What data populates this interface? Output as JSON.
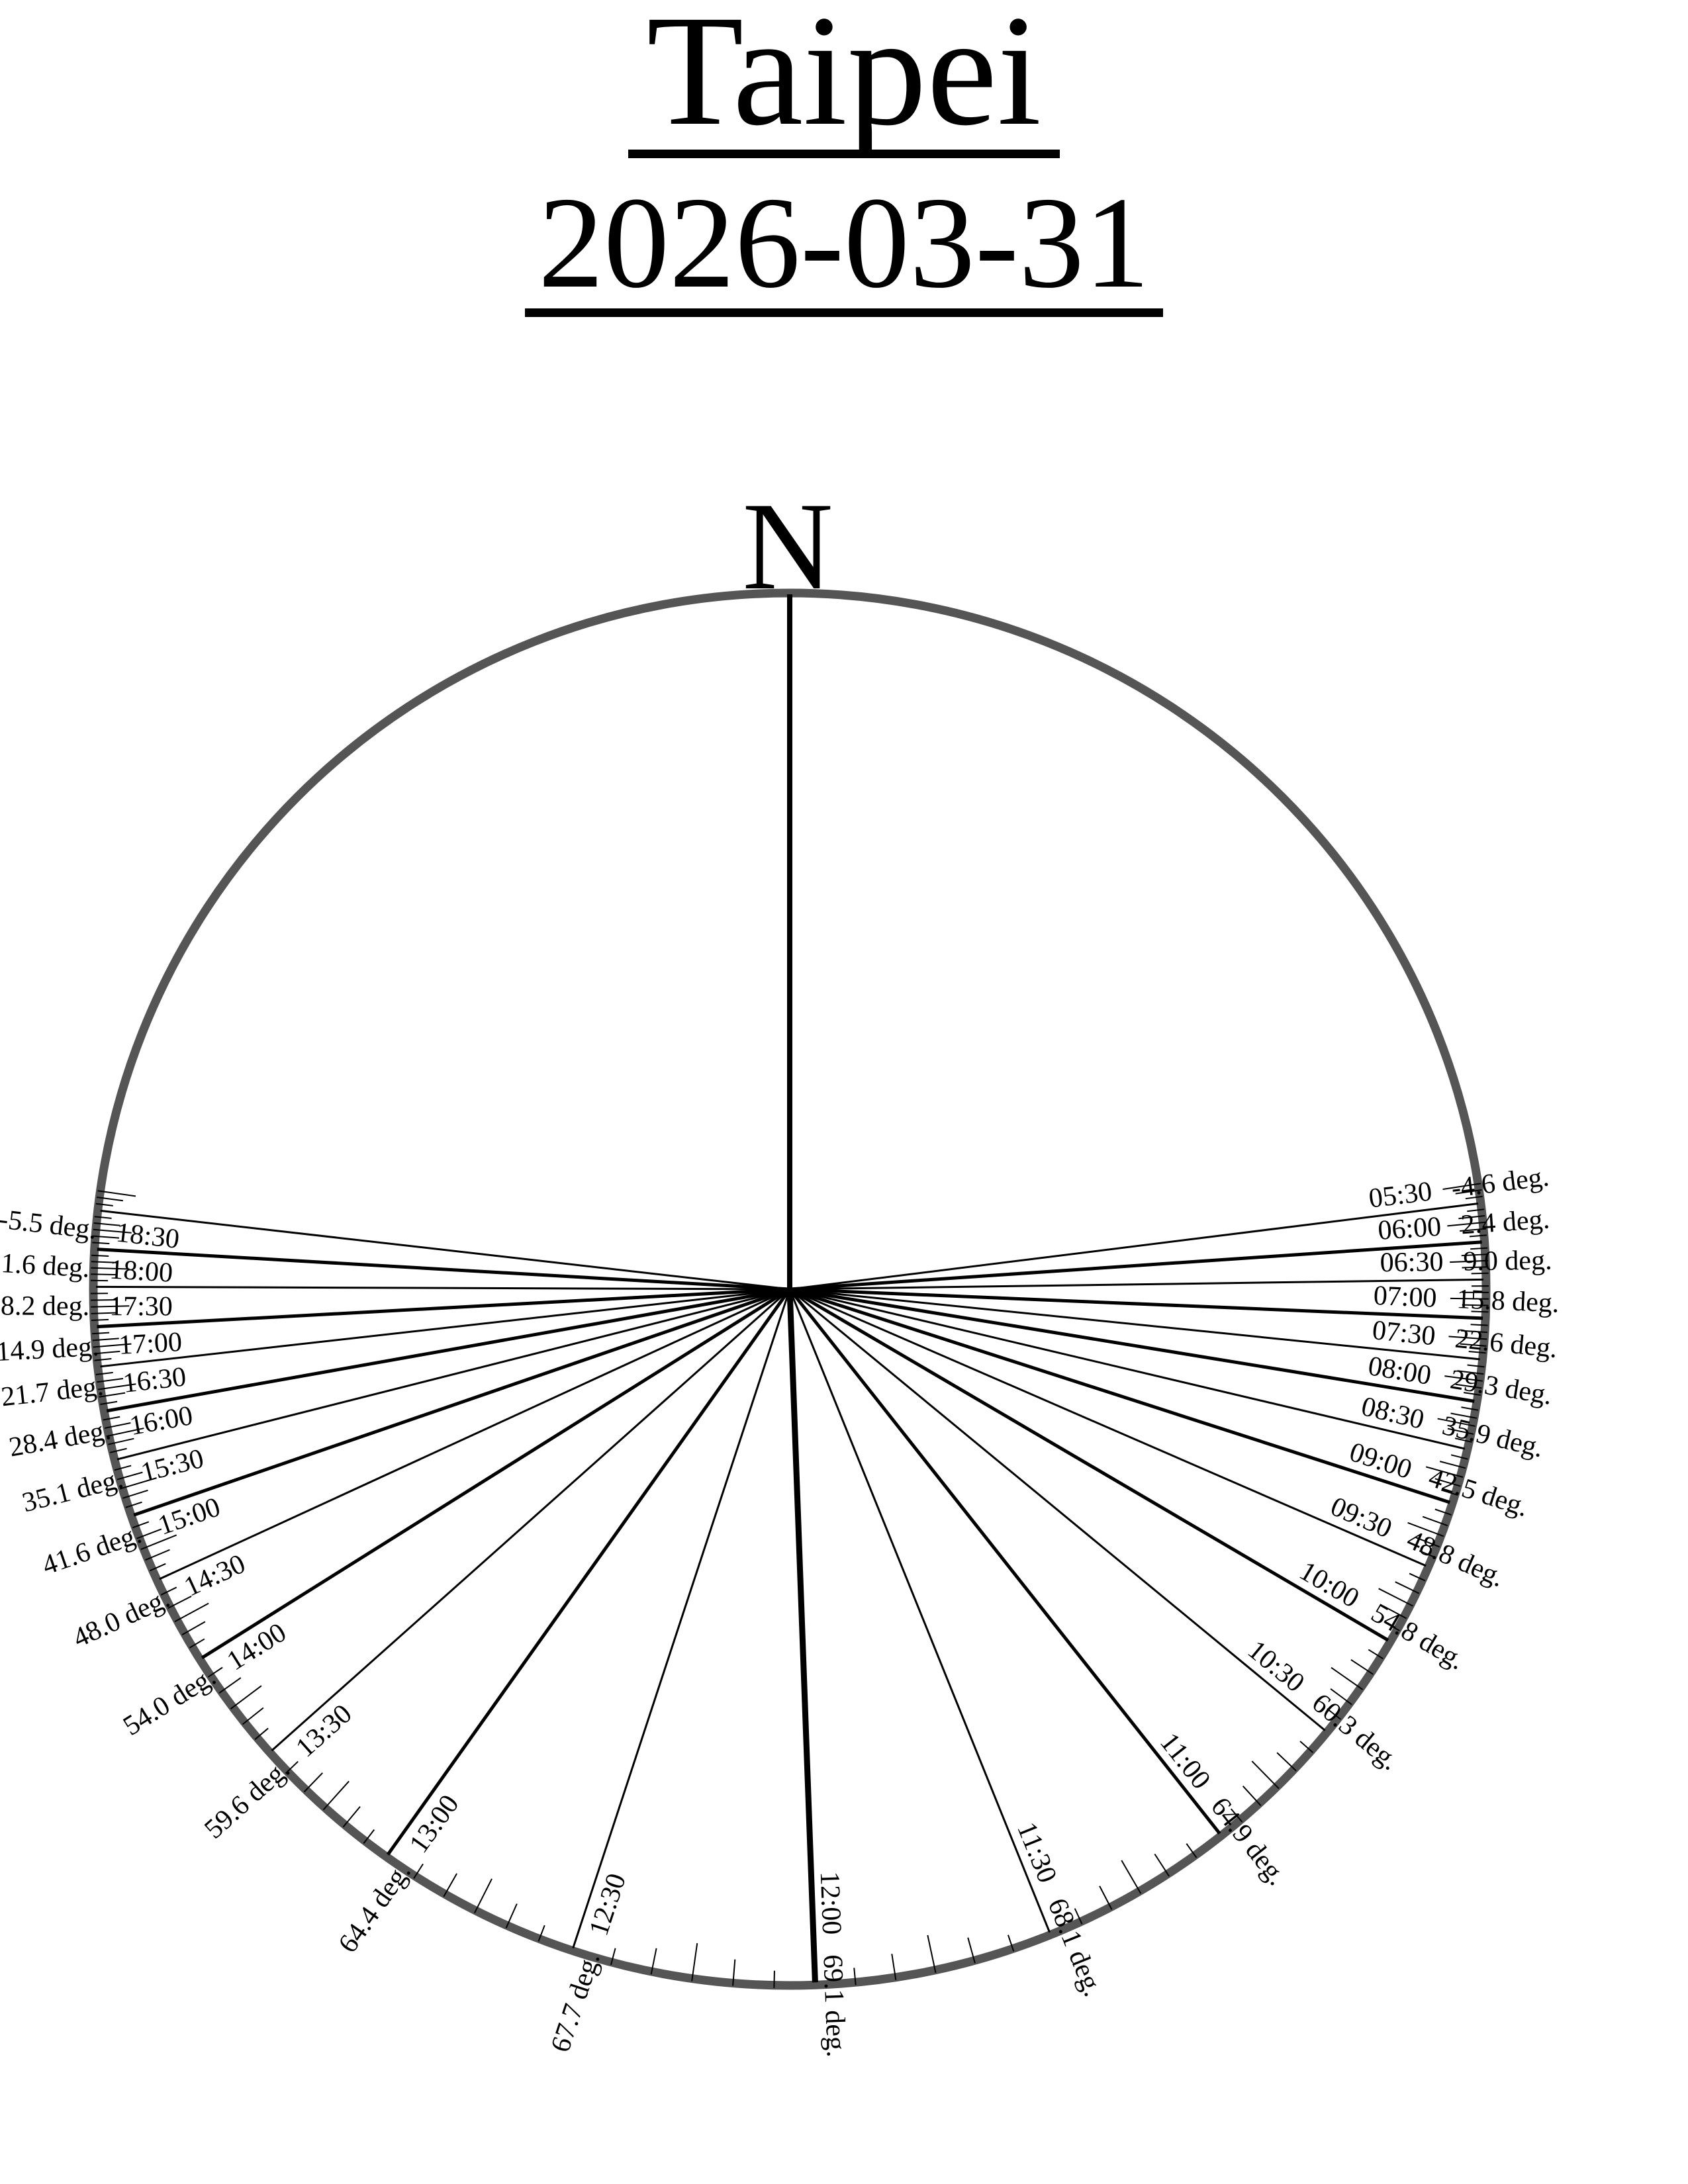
{
  "header": {
    "title": "Taipei",
    "date": "2026-03-31"
  },
  "compass": {
    "north": "N"
  },
  "colors": {
    "ink": "#000000",
    "rim": "#555555"
  },
  "chart_data": {
    "type": "polar-sun-path",
    "title": "Taipei",
    "date": "2026-03-31",
    "north_at_top": true,
    "azimuth_clockwise_from_north": true,
    "degree_suffix": "deg.",
    "label_format_east": "{time} {elevation} deg.",
    "label_format_west": "{elevation} deg. {time}",
    "points": [
      {
        "time": "05:30",
        "elevation_deg": -4.6,
        "azimuth_deg": 82.9,
        "side": "east",
        "hour": false
      },
      {
        "time": "06:00",
        "elevation_deg": 2.4,
        "azimuth_deg": 86.1,
        "side": "east",
        "hour": true
      },
      {
        "time": "06:30",
        "elevation_deg": 9.0,
        "azimuth_deg": 89.2,
        "side": "east",
        "hour": false
      },
      {
        "time": "07:00",
        "elevation_deg": 15.8,
        "azimuth_deg": 92.4,
        "side": "east",
        "hour": true
      },
      {
        "time": "07:30",
        "elevation_deg": 22.6,
        "azimuth_deg": 95.8,
        "side": "east",
        "hour": false
      },
      {
        "time": "08:00",
        "elevation_deg": 29.3,
        "azimuth_deg": 99.3,
        "side": "east",
        "hour": true
      },
      {
        "time": "08:30",
        "elevation_deg": 35.9,
        "azimuth_deg": 103.3,
        "side": "east",
        "hour": false
      },
      {
        "time": "09:00",
        "elevation_deg": 42.5,
        "azimuth_deg": 107.9,
        "side": "east",
        "hour": true
      },
      {
        "time": "09:30",
        "elevation_deg": 48.8,
        "azimuth_deg": 113.5,
        "side": "east",
        "hour": false
      },
      {
        "time": "10:00",
        "elevation_deg": 54.8,
        "azimuth_deg": 120.4,
        "side": "east",
        "hour": true
      },
      {
        "time": "10:30",
        "elevation_deg": 60.3,
        "azimuth_deg": 129.5,
        "side": "east",
        "hour": false
      },
      {
        "time": "11:00",
        "elevation_deg": 64.9,
        "azimuth_deg": 141.7,
        "side": "east",
        "hour": true
      },
      {
        "time": "11:30",
        "elevation_deg": 68.1,
        "azimuth_deg": 158.0,
        "side": "east",
        "hour": false
      },
      {
        "time": "12:00",
        "elevation_deg": 69.1,
        "azimuth_deg": 177.9,
        "side": "east",
        "hour": true,
        "emphasis": true
      },
      {
        "time": "12:30",
        "elevation_deg": 67.7,
        "azimuth_deg": 198.2,
        "side": "west",
        "hour": false
      },
      {
        "time": "13:00",
        "elevation_deg": 64.4,
        "azimuth_deg": 215.4,
        "side": "west",
        "hour": true
      },
      {
        "time": "13:30",
        "elevation_deg": 59.6,
        "azimuth_deg": 228.3,
        "side": "west",
        "hour": false
      },
      {
        "time": "14:00",
        "elevation_deg": 54.0,
        "azimuth_deg": 237.9,
        "side": "west",
        "hour": true
      },
      {
        "time": "14:30",
        "elevation_deg": 48.0,
        "azimuth_deg": 245.3,
        "side": "west",
        "hour": false
      },
      {
        "time": "15:00",
        "elevation_deg": 41.6,
        "azimuth_deg": 251.0,
        "side": "west",
        "hour": true
      },
      {
        "time": "15:30",
        "elevation_deg": 35.1,
        "azimuth_deg": 255.8,
        "side": "west",
        "hour": false
      },
      {
        "time": "16:00",
        "elevation_deg": 28.4,
        "azimuth_deg": 259.9,
        "side": "west",
        "hour": true
      },
      {
        "time": "16:30",
        "elevation_deg": 21.7,
        "azimuth_deg": 263.6,
        "side": "west",
        "hour": false
      },
      {
        "time": "17:00",
        "elevation_deg": 14.9,
        "azimuth_deg": 266.9,
        "side": "west",
        "hour": true
      },
      {
        "time": "17:30",
        "elevation_deg": 8.2,
        "azimuth_deg": 270.2,
        "side": "west",
        "hour": false
      },
      {
        "time": "18:00",
        "elevation_deg": 1.6,
        "azimuth_deg": 273.3,
        "side": "west",
        "hour": true
      },
      {
        "time": "18:30",
        "elevation_deg": -5.5,
        "azimuth_deg": 276.5,
        "side": "west",
        "hour": false
      }
    ],
    "minor_ticks": {
      "step_minutes": 5,
      "per_gap": 5,
      "beyond_range_each_side": 3
    }
  }
}
